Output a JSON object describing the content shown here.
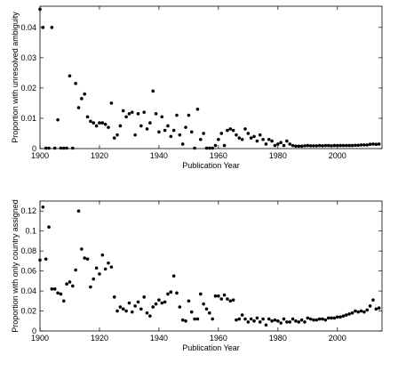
{
  "chart_data": [
    {
      "type": "scatter",
      "xlabel": "Publication Year",
      "ylabel": "Proportion with unresolved ambiguity",
      "xlim": [
        1900,
        2015
      ],
      "ylim": [
        0,
        0.047
      ],
      "xticks": [
        1900,
        1920,
        1940,
        1960,
        1980,
        2000
      ],
      "yticks": [
        0,
        0.01,
        0.02,
        0.03,
        0.04
      ],
      "ytick_labels": [
        "0",
        "0.01",
        "0.02",
        "0.03",
        "0.04"
      ],
      "grid": false,
      "marker_color": "#000000",
      "points": [
        [
          1900,
          0.046
        ],
        [
          1901,
          0.04
        ],
        [
          1902,
          0.0
        ],
        [
          1903,
          0.0
        ],
        [
          1904,
          0.04
        ],
        [
          1905,
          0.0
        ],
        [
          1906,
          0.0095
        ],
        [
          1907,
          0.0
        ],
        [
          1908,
          0.0
        ],
        [
          1909,
          0.0
        ],
        [
          1910,
          0.024
        ],
        [
          1911,
          0.0
        ],
        [
          1912,
          0.0215
        ],
        [
          1913,
          0.0135
        ],
        [
          1914,
          0.0165
        ],
        [
          1915,
          0.018
        ],
        [
          1916,
          0.0105
        ],
        [
          1917,
          0.009
        ],
        [
          1918,
          0.0085
        ],
        [
          1919,
          0.0075
        ],
        [
          1920,
          0.0085
        ],
        [
          1921,
          0.0085
        ],
        [
          1922,
          0.008
        ],
        [
          1923,
          0.007
        ],
        [
          1924,
          0.015
        ],
        [
          1925,
          0.0035
        ],
        [
          1926,
          0.0045
        ],
        [
          1927,
          0.0075
        ],
        [
          1928,
          0.0125
        ],
        [
          1929,
          0.0105
        ],
        [
          1930,
          0.0115
        ],
        [
          1931,
          0.012
        ],
        [
          1932,
          0.0045
        ],
        [
          1933,
          0.0115
        ],
        [
          1934,
          0.0075
        ],
        [
          1935,
          0.012
        ],
        [
          1936,
          0.0065
        ],
        [
          1937,
          0.0085
        ],
        [
          1938,
          0.019
        ],
        [
          1939,
          0.0115
        ],
        [
          1940,
          0.0055
        ],
        [
          1941,
          0.0105
        ],
        [
          1942,
          0.006
        ],
        [
          1943,
          0.0075
        ],
        [
          1944,
          0.004
        ],
        [
          1945,
          0.006
        ],
        [
          1946,
          0.011
        ],
        [
          1947,
          0.0045
        ],
        [
          1948,
          0.0015
        ],
        [
          1949,
          0.007
        ],
        [
          1950,
          0.011
        ],
        [
          1951,
          0.0055
        ],
        [
          1952,
          0.0
        ],
        [
          1953,
          0.013
        ],
        [
          1954,
          0.003
        ],
        [
          1955,
          0.005
        ],
        [
          1956,
          0.0
        ],
        [
          1957,
          0.0
        ],
        [
          1958,
          0.0
        ],
        [
          1959,
          0.001
        ],
        [
          1960,
          0.003
        ],
        [
          1961,
          0.005
        ],
        [
          1962,
          0.001
        ],
        [
          1963,
          0.006
        ],
        [
          1964,
          0.0065
        ],
        [
          1965,
          0.006
        ],
        [
          1966,
          0.0045
        ],
        [
          1967,
          0.0035
        ],
        [
          1968,
          0.003
        ],
        [
          1969,
          0.0065
        ],
        [
          1970,
          0.005
        ],
        [
          1971,
          0.0035
        ],
        [
          1972,
          0.004
        ],
        [
          1973,
          0.0025
        ],
        [
          1974,
          0.0045
        ],
        [
          1975,
          0.003
        ],
        [
          1976,
          0.0015
        ],
        [
          1977,
          0.003
        ],
        [
          1978,
          0.0025
        ],
        [
          1979,
          0.001
        ],
        [
          1980,
          0.0015
        ],
        [
          1981,
          0.002
        ],
        [
          1982,
          0.001
        ],
        [
          1983,
          0.0025
        ],
        [
          1984,
          0.0015
        ],
        [
          1985,
          0.001
        ],
        [
          1986,
          0.0008
        ],
        [
          1987,
          0.0008
        ],
        [
          1988,
          0.0008
        ],
        [
          1989,
          0.0009
        ],
        [
          1990,
          0.001
        ],
        [
          1991,
          0.0009
        ],
        [
          1992,
          0.0009
        ],
        [
          1993,
          0.0009
        ],
        [
          1994,
          0.001
        ],
        [
          1995,
          0.0009
        ],
        [
          1996,
          0.001
        ],
        [
          1997,
          0.001
        ],
        [
          1998,
          0.0009
        ],
        [
          1999,
          0.001
        ],
        [
          2000,
          0.001
        ],
        [
          2001,
          0.001
        ],
        [
          2002,
          0.001
        ],
        [
          2003,
          0.001
        ],
        [
          2004,
          0.001
        ],
        [
          2005,
          0.001
        ],
        [
          2006,
          0.0011
        ],
        [
          2007,
          0.0011
        ],
        [
          2008,
          0.0012
        ],
        [
          2009,
          0.0012
        ],
        [
          2010,
          0.0012
        ],
        [
          2011,
          0.0014
        ],
        [
          2012,
          0.0015
        ],
        [
          2013,
          0.0014
        ],
        [
          2014,
          0.0015
        ]
      ]
    },
    {
      "type": "scatter",
      "xlabel": "Publication Year",
      "ylabel": "Proportion with only country assigned",
      "xlim": [
        1900,
        2015
      ],
      "ylim": [
        0,
        0.13
      ],
      "xticks": [
        1900,
        1920,
        1940,
        1960,
        1980,
        2000
      ],
      "yticks": [
        0,
        0.02,
        0.04,
        0.06,
        0.08,
        0.1,
        0.12
      ],
      "ytick_labels": [
        "0",
        "0.02",
        "0.04",
        "0.06",
        "0.08",
        "0.1",
        "0.12"
      ],
      "grid": false,
      "marker_color": "#000000",
      "points": [
        [
          1900,
          0.071
        ],
        [
          1901,
          0.124
        ],
        [
          1902,
          0.072
        ],
        [
          1903,
          0.104
        ],
        [
          1904,
          0.042
        ],
        [
          1905,
          0.042
        ],
        [
          1906,
          0.038
        ],
        [
          1907,
          0.037
        ],
        [
          1908,
          0.03
        ],
        [
          1909,
          0.047
        ],
        [
          1910,
          0.049
        ],
        [
          1911,
          0.045
        ],
        [
          1912,
          0.061
        ],
        [
          1913,
          0.12
        ],
        [
          1914,
          0.082
        ],
        [
          1915,
          0.073
        ],
        [
          1916,
          0.072
        ],
        [
          1917,
          0.044
        ],
        [
          1918,
          0.052
        ],
        [
          1919,
          0.063
        ],
        [
          1920,
          0.057
        ],
        [
          1921,
          0.076
        ],
        [
          1922,
          0.062
        ],
        [
          1923,
          0.068
        ],
        [
          1924,
          0.064
        ],
        [
          1925,
          0.034
        ],
        [
          1926,
          0.02
        ],
        [
          1927,
          0.024
        ],
        [
          1928,
          0.022
        ],
        [
          1929,
          0.02
        ],
        [
          1930,
          0.028
        ],
        [
          1931,
          0.019
        ],
        [
          1932,
          0.025
        ],
        [
          1933,
          0.029
        ],
        [
          1934,
          0.022
        ],
        [
          1935,
          0.034
        ],
        [
          1936,
          0.018
        ],
        [
          1937,
          0.015
        ],
        [
          1938,
          0.024
        ],
        [
          1939,
          0.027
        ],
        [
          1940,
          0.031
        ],
        [
          1941,
          0.028
        ],
        [
          1942,
          0.029
        ],
        [
          1943,
          0.037
        ],
        [
          1944,
          0.039
        ],
        [
          1945,
          0.055
        ],
        [
          1946,
          0.038
        ],
        [
          1947,
          0.024
        ],
        [
          1948,
          0.011
        ],
        [
          1949,
          0.01
        ],
        [
          1950,
          0.03
        ],
        [
          1951,
          0.019
        ],
        [
          1952,
          0.012
        ],
        [
          1953,
          0.012
        ],
        [
          1954,
          0.037
        ],
        [
          1955,
          0.027
        ],
        [
          1956,
          0.022
        ],
        [
          1957,
          0.018
        ],
        [
          1958,
          0.012
        ],
        [
          1959,
          0.035
        ],
        [
          1960,
          0.035
        ],
        [
          1961,
          0.032
        ],
        [
          1962,
          0.036
        ],
        [
          1963,
          0.032
        ],
        [
          1964,
          0.03
        ],
        [
          1965,
          0.031
        ],
        [
          1966,
          0.011
        ],
        [
          1967,
          0.012
        ],
        [
          1968,
          0.016
        ],
        [
          1969,
          0.012
        ],
        [
          1970,
          0.009
        ],
        [
          1971,
          0.012
        ],
        [
          1972,
          0.01
        ],
        [
          1973,
          0.013
        ],
        [
          1974,
          0.009
        ],
        [
          1975,
          0.012
        ],
        [
          1976,
          0.006
        ],
        [
          1977,
          0.012
        ],
        [
          1978,
          0.01
        ],
        [
          1979,
          0.011
        ],
        [
          1980,
          0.01
        ],
        [
          1981,
          0.008
        ],
        [
          1982,
          0.012
        ],
        [
          1983,
          0.009
        ],
        [
          1984,
          0.009
        ],
        [
          1985,
          0.012
        ],
        [
          1986,
          0.01
        ],
        [
          1987,
          0.009
        ],
        [
          1988,
          0.011
        ],
        [
          1989,
          0.009
        ],
        [
          1990,
          0.013
        ],
        [
          1991,
          0.012
        ],
        [
          1992,
          0.011
        ],
        [
          1993,
          0.011
        ],
        [
          1994,
          0.012
        ],
        [
          1995,
          0.012
        ],
        [
          1996,
          0.011
        ],
        [
          1997,
          0.013
        ],
        [
          1998,
          0.013
        ],
        [
          1999,
          0.013
        ],
        [
          2000,
          0.014
        ],
        [
          2001,
          0.014
        ],
        [
          2002,
          0.015
        ],
        [
          2003,
          0.016
        ],
        [
          2004,
          0.017
        ],
        [
          2005,
          0.018
        ],
        [
          2006,
          0.02
        ],
        [
          2007,
          0.019
        ],
        [
          2008,
          0.02
        ],
        [
          2009,
          0.019
        ],
        [
          2010,
          0.021
        ],
        [
          2011,
          0.025
        ],
        [
          2012,
          0.031
        ],
        [
          2013,
          0.022
        ],
        [
          2014,
          0.023
        ]
      ]
    }
  ]
}
